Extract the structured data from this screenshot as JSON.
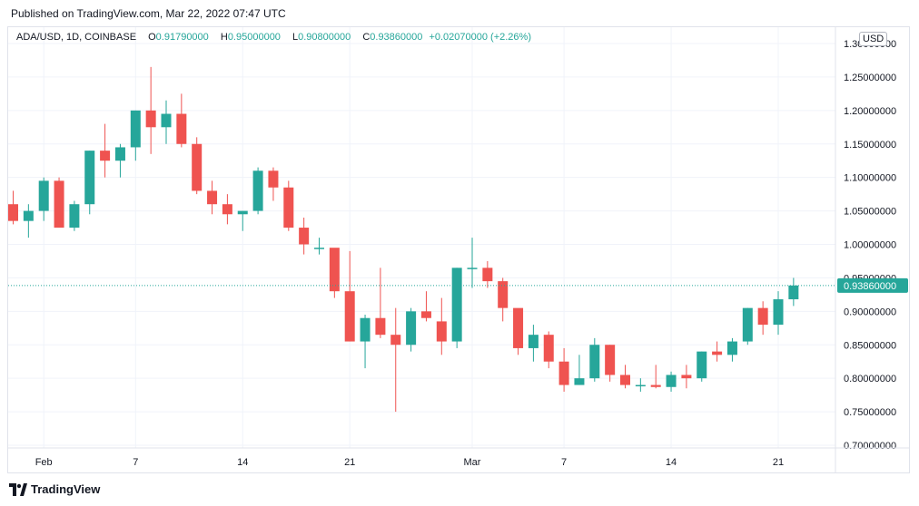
{
  "header": {
    "published": "Published on TradingView.com, Mar 22, 2022 07:47 UTC"
  },
  "legend": {
    "symbol": "ADA/USD, 1D, COINBASE",
    "o_label": "O",
    "o_value": "0.91790000",
    "h_label": "H",
    "h_value": "0.95000000",
    "l_label": "L",
    "l_value": "0.90800000",
    "c_label": "C",
    "c_value": "0.93860000",
    "change": "+0.02070000 (+2.26%)"
  },
  "currency_badge": "USD",
  "footer": {
    "brand": "TradingView"
  },
  "colors": {
    "up": "#26a69a",
    "down": "#ef5350",
    "grid": "#f0f3fa",
    "axis_text": "#131722",
    "price_line": "#26a69a"
  },
  "chart_data": {
    "type": "candlestick",
    "symbol": "ADA/USD",
    "interval": "1D",
    "exchange": "COINBASE",
    "ylim": [
      0.7,
      1.3
    ],
    "y_ticks": [
      "0.70000000",
      "0.75000000",
      "0.80000000",
      "0.85000000",
      "0.90000000",
      "0.95000000",
      "1.00000000",
      "1.05000000",
      "1.10000000",
      "1.15000000",
      "1.20000000",
      "1.25000000",
      "1.30000000"
    ],
    "y_tick_values": [
      0.7,
      0.75,
      0.8,
      0.85,
      0.9,
      0.95,
      1.0,
      1.05,
      1.1,
      1.15,
      1.2,
      1.25,
      1.3
    ],
    "x_ticks": [
      {
        "label": "Feb",
        "index": 2
      },
      {
        "label": "7",
        "index": 8
      },
      {
        "label": "14",
        "index": 15
      },
      {
        "label": "21",
        "index": 22
      },
      {
        "label": "Mar",
        "index": 30
      },
      {
        "label": "7",
        "index": 36
      },
      {
        "label": "14",
        "index": 43
      },
      {
        "label": "21",
        "index": 50
      }
    ],
    "last_price": "0.93860000",
    "last_price_value": 0.9386,
    "candles": [
      {
        "o": 1.06,
        "h": 1.08,
        "l": 1.03,
        "c": 1.035
      },
      {
        "o": 1.035,
        "h": 1.06,
        "l": 1.01,
        "c": 1.05
      },
      {
        "o": 1.05,
        "h": 1.1,
        "l": 1.035,
        "c": 1.095
      },
      {
        "o": 1.095,
        "h": 1.1,
        "l": 1.025,
        "c": 1.025
      },
      {
        "o": 1.025,
        "h": 1.065,
        "l": 1.02,
        "c": 1.06
      },
      {
        "o": 1.06,
        "h": 1.14,
        "l": 1.045,
        "c": 1.14
      },
      {
        "o": 1.14,
        "h": 1.18,
        "l": 1.1,
        "c": 1.125
      },
      {
        "o": 1.125,
        "h": 1.15,
        "l": 1.1,
        "c": 1.145
      },
      {
        "o": 1.145,
        "h": 1.2,
        "l": 1.125,
        "c": 1.2
      },
      {
        "o": 1.2,
        "h": 1.265,
        "l": 1.135,
        "c": 1.175
      },
      {
        "o": 1.175,
        "h": 1.215,
        "l": 1.15,
        "c": 1.195
      },
      {
        "o": 1.195,
        "h": 1.225,
        "l": 1.145,
        "c": 1.15
      },
      {
        "o": 1.15,
        "h": 1.16,
        "l": 1.075,
        "c": 1.08
      },
      {
        "o": 1.08,
        "h": 1.095,
        "l": 1.045,
        "c": 1.06
      },
      {
        "o": 1.06,
        "h": 1.075,
        "l": 1.03,
        "c": 1.045
      },
      {
        "o": 1.045,
        "h": 1.05,
        "l": 1.02,
        "c": 1.05
      },
      {
        "o": 1.05,
        "h": 1.115,
        "l": 1.045,
        "c": 1.11
      },
      {
        "o": 1.11,
        "h": 1.115,
        "l": 1.065,
        "c": 1.085
      },
      {
        "o": 1.085,
        "h": 1.095,
        "l": 1.02,
        "c": 1.025
      },
      {
        "o": 1.025,
        "h": 1.04,
        "l": 0.985,
        "c": 1.0
      },
      {
        "o": 0.995,
        "h": 1.01,
        "l": 0.985,
        "c": 0.995
      },
      {
        "o": 0.995,
        "h": 0.99,
        "l": 0.92,
        "c": 0.93
      },
      {
        "o": 0.93,
        "h": 0.99,
        "l": 0.855,
        "c": 0.855
      },
      {
        "o": 0.855,
        "h": 0.895,
        "l": 0.815,
        "c": 0.89
      },
      {
        "o": 0.89,
        "h": 0.965,
        "l": 0.86,
        "c": 0.865
      },
      {
        "o": 0.865,
        "h": 0.905,
        "l": 0.75,
        "c": 0.85
      },
      {
        "o": 0.85,
        "h": 0.905,
        "l": 0.84,
        "c": 0.9
      },
      {
        "o": 0.9,
        "h": 0.93,
        "l": 0.885,
        "c": 0.89
      },
      {
        "o": 0.885,
        "h": 0.92,
        "l": 0.835,
        "c": 0.855
      },
      {
        "o": 0.855,
        "h": 0.965,
        "l": 0.845,
        "c": 0.965
      },
      {
        "o": 0.965,
        "h": 1.01,
        "l": 0.935,
        "c": 0.965
      },
      {
        "o": 0.965,
        "h": 0.975,
        "l": 0.935,
        "c": 0.945
      },
      {
        "o": 0.945,
        "h": 0.95,
        "l": 0.885,
        "c": 0.905
      },
      {
        "o": 0.905,
        "h": 0.9,
        "l": 0.835,
        "c": 0.845
      },
      {
        "o": 0.845,
        "h": 0.88,
        "l": 0.825,
        "c": 0.865
      },
      {
        "o": 0.865,
        "h": 0.87,
        "l": 0.815,
        "c": 0.825
      },
      {
        "o": 0.825,
        "h": 0.845,
        "l": 0.78,
        "c": 0.79
      },
      {
        "o": 0.79,
        "h": 0.835,
        "l": 0.79,
        "c": 0.8
      },
      {
        "o": 0.8,
        "h": 0.86,
        "l": 0.795,
        "c": 0.85
      },
      {
        "o": 0.85,
        "h": 0.85,
        "l": 0.795,
        "c": 0.805
      },
      {
        "o": 0.805,
        "h": 0.82,
        "l": 0.785,
        "c": 0.79
      },
      {
        "o": 0.79,
        "h": 0.8,
        "l": 0.78,
        "c": 0.79
      },
      {
        "o": 0.79,
        "h": 0.82,
        "l": 0.785,
        "c": 0.787
      },
      {
        "o": 0.787,
        "h": 0.81,
        "l": 0.78,
        "c": 0.805
      },
      {
        "o": 0.805,
        "h": 0.82,
        "l": 0.785,
        "c": 0.8
      },
      {
        "o": 0.8,
        "h": 0.84,
        "l": 0.795,
        "c": 0.84
      },
      {
        "o": 0.84,
        "h": 0.855,
        "l": 0.825,
        "c": 0.835
      },
      {
        "o": 0.835,
        "h": 0.86,
        "l": 0.825,
        "c": 0.855
      },
      {
        "o": 0.855,
        "h": 0.905,
        "l": 0.85,
        "c": 0.905
      },
      {
        "o": 0.905,
        "h": 0.915,
        "l": 0.865,
        "c": 0.88
      },
      {
        "o": 0.88,
        "h": 0.93,
        "l": 0.865,
        "c": 0.918
      },
      {
        "o": 0.918,
        "h": 0.95,
        "l": 0.908,
        "c": 0.9386
      }
    ]
  }
}
